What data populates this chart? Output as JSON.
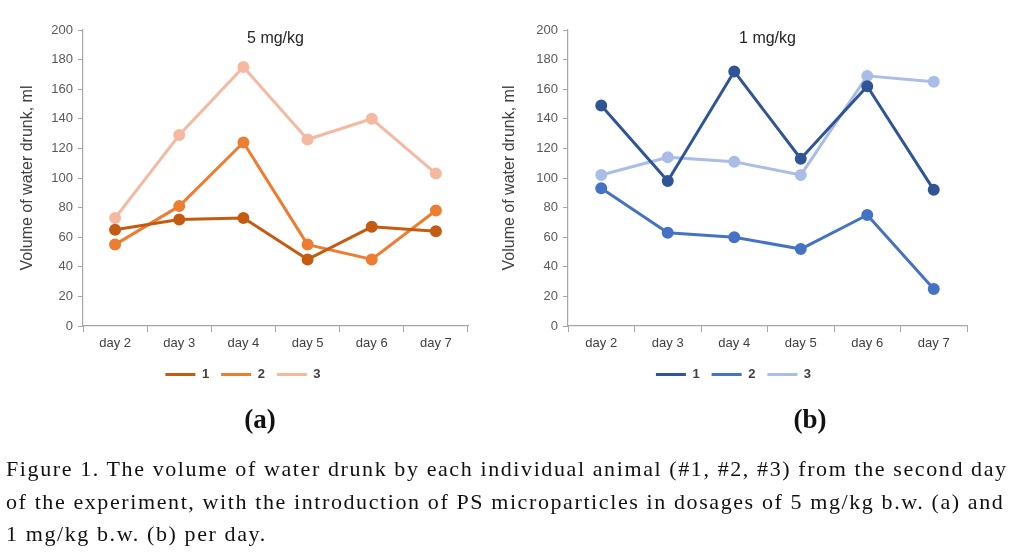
{
  "chart_data": [
    {
      "type": "line",
      "title": "5 mg/kg",
      "ylabel": "Volume of water drunk, ml",
      "categories": [
        "day 2",
        "day 3",
        "day 4",
        "day 5",
        "day 6",
        "day 7"
      ],
      "series": [
        {
          "name": "1",
          "color": "#c55a11",
          "values": [
            65,
            72,
            73,
            45,
            67,
            64
          ]
        },
        {
          "name": "2",
          "color": "#ed7d31",
          "values": [
            55,
            81,
            124,
            55,
            45,
            78
          ]
        },
        {
          "name": "3",
          "color": "#f5b9a2",
          "values": [
            73,
            129,
            175,
            126,
            140,
            103
          ]
        }
      ],
      "ylim": [
        0,
        200
      ],
      "yticks": [
        0,
        20,
        40,
        60,
        80,
        100,
        120,
        140,
        160,
        180,
        200
      ],
      "legend": "bottom",
      "marker": "circle",
      "line_style": "solid",
      "annotations": [
        "(a)",
        "Figure 1. The volume of water drunk by each individual animal (#1, #2, #3) from the second day of the experiment, with the introduction of PS microparticles in dosages of 5 mg/kg b.w. (a) and 1 mg/kg b.w. (b) per day."
      ]
    },
    {
      "type": "line",
      "title": "1 mg/kg",
      "ylabel": "Volume of water drunk, ml",
      "categories": [
        "day 2",
        "day 3",
        "day 4",
        "day 5",
        "day 6",
        "day 7"
      ],
      "series": [
        {
          "name": "1",
          "color": "#2f5597",
          "values": [
            149,
            98,
            172,
            113,
            162,
            92
          ]
        },
        {
          "name": "2",
          "color": "#4472c4",
          "values": [
            93,
            63,
            60,
            52,
            75,
            25
          ]
        },
        {
          "name": "3",
          "color": "#aabde6",
          "values": [
            102,
            114,
            111,
            102,
            169,
            165
          ]
        }
      ],
      "ylim": [
        0,
        200
      ],
      "yticks": [
        0,
        20,
        40,
        60,
        80,
        100,
        120,
        140,
        160,
        180,
        200
      ],
      "legend": "bottom",
      "marker": "circle",
      "line_style": "solid",
      "annotations": [
        "(b)"
      ]
    }
  ]
}
